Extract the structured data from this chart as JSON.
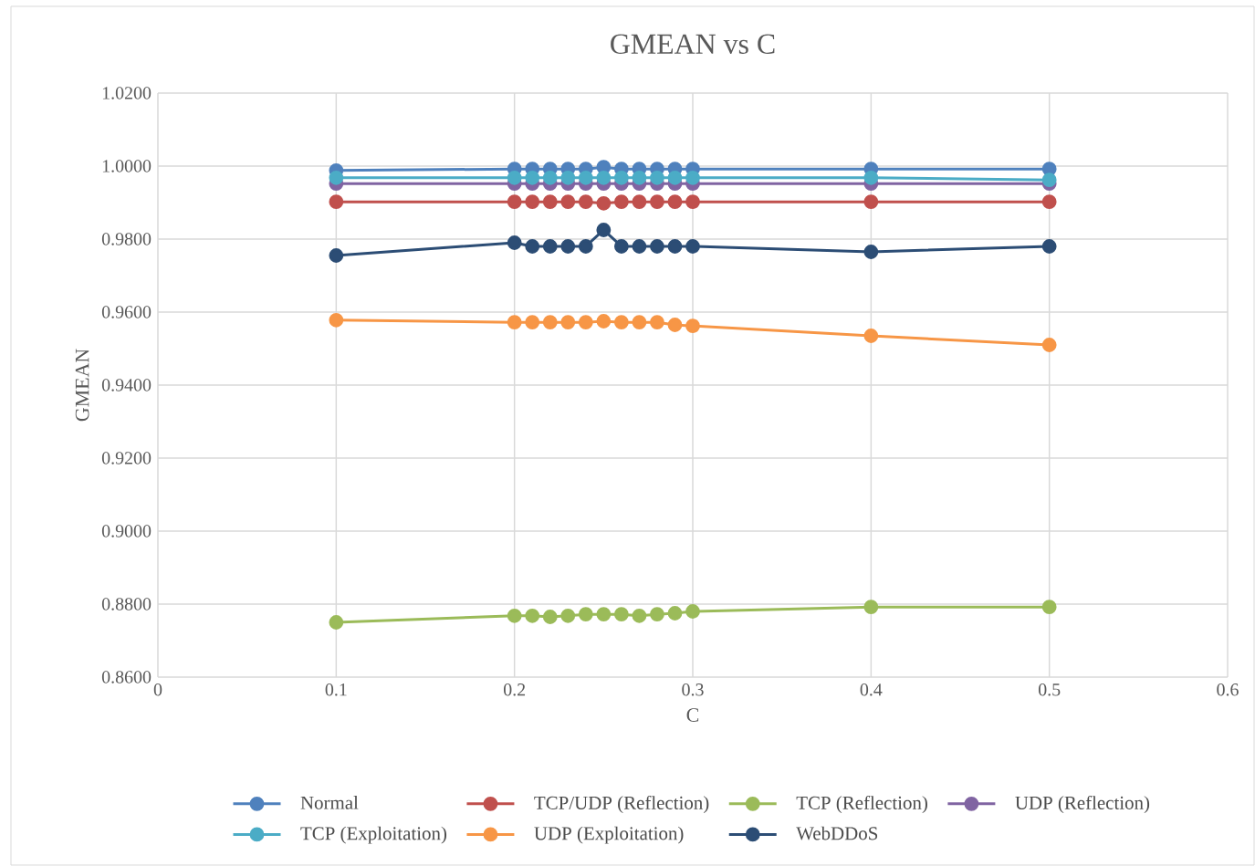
{
  "chart_data": {
    "type": "line",
    "title": "GMEAN vs C",
    "xlabel": "C",
    "ylabel": "GMEAN",
    "x": [
      0.1,
      0.2,
      0.21,
      0.22,
      0.23,
      0.24,
      0.25,
      0.26,
      0.27,
      0.28,
      0.29,
      0.3,
      0.4,
      0.5
    ],
    "series": [
      {
        "name": "Normal",
        "color": "#4f81bd",
        "values": [
          0.9988,
          0.9992,
          0.9992,
          0.9992,
          0.9992,
          0.9992,
          0.9997,
          0.9992,
          0.9992,
          0.9992,
          0.9992,
          0.9992,
          0.9992,
          0.9992
        ]
      },
      {
        "name": "TCP/UDP (Reflection)",
        "color": "#c0504d",
        "values": [
          0.9902,
          0.9902,
          0.9902,
          0.9902,
          0.9902,
          0.9902,
          0.9898,
          0.9902,
          0.9902,
          0.9902,
          0.9902,
          0.9902,
          0.9902,
          0.9902
        ]
      },
      {
        "name": "TCP (Reflection)",
        "color": "#9bbb59",
        "values": [
          0.875,
          0.8768,
          0.8768,
          0.8765,
          0.8768,
          0.8772,
          0.8772,
          0.8772,
          0.8768,
          0.8772,
          0.8775,
          0.878,
          0.8792,
          0.8792
        ]
      },
      {
        "name": "UDP (Reflection)",
        "color": "#8064a2",
        "values": [
          0.9952,
          0.9952,
          0.9952,
          0.9952,
          0.9952,
          0.9952,
          0.9952,
          0.9952,
          0.9952,
          0.9952,
          0.9952,
          0.9952,
          0.9952,
          0.9952
        ]
      },
      {
        "name": "TCP (Exploitation)",
        "color": "#4bacc6",
        "values": [
          0.9968,
          0.9968,
          0.9968,
          0.9968,
          0.9968,
          0.9968,
          0.9968,
          0.9968,
          0.9968,
          0.9968,
          0.9968,
          0.9968,
          0.9968,
          0.9962
        ]
      },
      {
        "name": "UDP (Exploitation)",
        "color": "#f79646",
        "values": [
          0.9578,
          0.9572,
          0.9572,
          0.9572,
          0.9572,
          0.9572,
          0.9575,
          0.9572,
          0.9572,
          0.9572,
          0.9565,
          0.9562,
          0.9535,
          0.951
        ]
      },
      {
        "name": "WebDDoS",
        "color": "#2c4d75",
        "values": [
          0.9755,
          0.979,
          0.978,
          0.978,
          0.978,
          0.978,
          0.9825,
          0.978,
          0.978,
          0.978,
          0.978,
          0.978,
          0.9765,
          0.978
        ]
      }
    ],
    "xlim": [
      0,
      0.6
    ],
    "xticks": [
      0,
      0.1,
      0.2,
      0.3,
      0.4,
      0.5,
      0.6
    ],
    "ylim": [
      0.86,
      1.02
    ],
    "yticks": [
      {
        "value": 0.86,
        "label": "0.8600"
      },
      {
        "value": 0.88,
        "label": "0.8800"
      },
      {
        "value": 0.9,
        "label": "0.9000"
      },
      {
        "value": 0.92,
        "label": "0.9200"
      },
      {
        "value": 0.94,
        "label": "0.9400"
      },
      {
        "value": 0.96,
        "label": "0.9600"
      },
      {
        "value": 0.98,
        "label": "0.9800"
      },
      {
        "value": 1.0,
        "label": "1.0000"
      },
      {
        "value": 1.02,
        "label": "1.0200"
      }
    ],
    "grid": true,
    "legend": "bottom",
    "marker": "circle",
    "line_style": "solid"
  }
}
